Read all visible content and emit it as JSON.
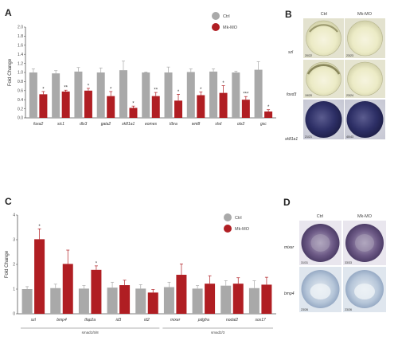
{
  "panels": {
    "A": "A",
    "B": "B",
    "C": "C",
    "D": "D"
  },
  "chart_data": [
    {
      "type": "bar",
      "panel": "A",
      "ylabel": "Fold Change",
      "ylim": [
        0,
        2
      ],
      "yticks": [
        "0.0",
        "0.2",
        "0.4",
        "0.6",
        "0.8",
        "1.0",
        "1.2",
        "1.4",
        "1.6",
        "1.8",
        "2.0"
      ],
      "legend_position": "top-right",
      "categories": [
        "foxa2",
        "sic1",
        "dlx3",
        "gata2",
        "xk81a1",
        "eomes",
        "t/bra",
        "wnt8",
        "shd",
        "otx2",
        "gsc"
      ],
      "significance": [
        "*",
        "**",
        "*",
        "*",
        "*",
        "**",
        "*",
        "*",
        "*",
        "***",
        "*"
      ],
      "series": [
        {
          "name": "Ctrl",
          "color": "#a9a9a9",
          "values": [
            1.0,
            0.98,
            1.02,
            1.0,
            1.05,
            1.0,
            1.0,
            1.01,
            1.02,
            1.0,
            1.06
          ],
          "errors": [
            0.08,
            0.06,
            0.09,
            0.1,
            0.2,
            0.01,
            0.12,
            0.07,
            0.06,
            0.03,
            0.18
          ]
        },
        {
          "name": "Mk-MO",
          "color": "#b01e23",
          "values": [
            0.52,
            0.58,
            0.6,
            0.48,
            0.22,
            0.48,
            0.38,
            0.5,
            0.55,
            0.4,
            0.14
          ],
          "errors": [
            0.06,
            0.03,
            0.05,
            0.1,
            0.04,
            0.08,
            0.14,
            0.07,
            0.16,
            0.07,
            0.04
          ]
        }
      ]
    },
    {
      "type": "bar",
      "panel": "C",
      "ylabel": "Fold Change",
      "ylim": [
        0,
        4
      ],
      "yticks": [
        "0",
        "1",
        "2",
        "3",
        "4"
      ],
      "legend_position": "top-right",
      "categories": [
        "szl",
        "bmp4",
        "tfap2a",
        "id3",
        "id2",
        "mixer",
        "pdgfra",
        "nodal2",
        "sox17"
      ],
      "significance": [
        "*",
        "",
        "*",
        "",
        "",
        "",
        "",
        "",
        ""
      ],
      "groups": [
        {
          "label": "smad1/5/8",
          "from": 0,
          "to": 4
        },
        {
          "label": "smad2/3",
          "from": 5,
          "to": 8
        }
      ],
      "series": [
        {
          "name": "Ctrl",
          "color": "#a9a9a9",
          "values": [
            1.0,
            1.04,
            1.02,
            1.06,
            1.02,
            1.08,
            1.02,
            1.14,
            1.04
          ],
          "errors": [
            0.1,
            0.16,
            0.12,
            0.22,
            0.16,
            0.2,
            0.12,
            0.2,
            0.3
          ]
        },
        {
          "name": "Mk-MO",
          "color": "#b01e23",
          "values": [
            3.02,
            2.02,
            1.78,
            1.16,
            0.86,
            1.58,
            1.22,
            1.22,
            1.18
          ],
          "errors": [
            0.42,
            0.56,
            0.16,
            0.2,
            0.12,
            0.44,
            0.32,
            0.24,
            0.3
          ]
        }
      ]
    }
  ],
  "panel_b": {
    "columns": [
      "Ctrl",
      "Mk-MO"
    ],
    "rows": [
      {
        "label": "szl",
        "counts": [
          "20/22",
          "23/23"
        ],
        "tone": "light"
      },
      {
        "label": "foxd3",
        "counts": [
          "19/20",
          "23/24"
        ],
        "tone": "light"
      },
      {
        "label": "xk81a1",
        "counts": [
          "21/21",
          "40/43"
        ],
        "tone": "dark"
      }
    ]
  },
  "panel_d": {
    "columns": [
      "Ctrl",
      "Mk-MO"
    ],
    "rows": [
      {
        "label": "mixer",
        "counts": [
          "31/31",
          "33/33"
        ],
        "tone": "purple"
      },
      {
        "label": "bmp4",
        "counts": [
          "23/26",
          "23/26"
        ],
        "tone": "pale"
      }
    ]
  },
  "colors": {
    "ctrl": "#a9a9a9",
    "mo": "#b01e23",
    "axis": "#555555"
  }
}
